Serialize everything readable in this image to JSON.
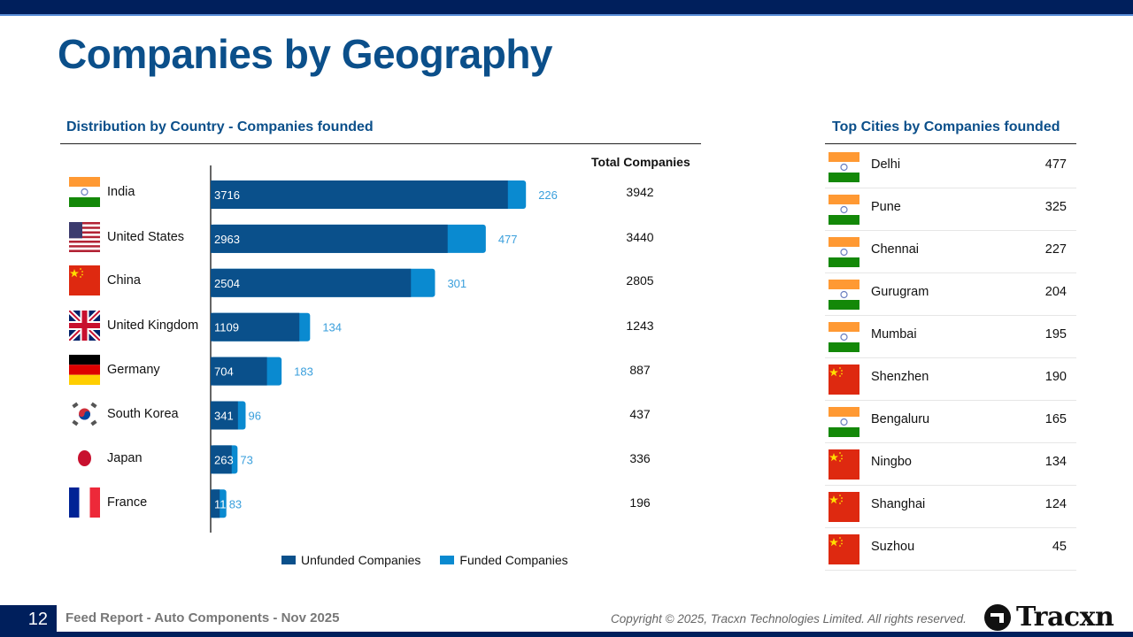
{
  "page": {
    "title": "Companies by Geography",
    "page_number": "12",
    "footer_title": "Feed Report - Auto Components - Nov 2025",
    "copyright": "Copyright © 2025, Tracxn Technologies Limited. All rights reserved.",
    "logo_text": "Tracxn"
  },
  "colors": {
    "title": "#0b4f8a",
    "unfunded": "#0a508b",
    "funded": "#0a8ad0",
    "funded_label": "#3a9fdc",
    "nav_dark": "#001f5c"
  },
  "country_section": {
    "title": "Distribution by Country - Companies founded",
    "total_header": "Total Companies",
    "countries": [
      {
        "name": "India",
        "flag": "india-flag",
        "total": "3942"
      },
      {
        "name": "United States",
        "flag": "usa-flag",
        "total": "3440"
      },
      {
        "name": "China",
        "flag": "china-flag",
        "total": "2805"
      },
      {
        "name": "United Kingdom",
        "flag": "uk-flag",
        "total": "1243"
      },
      {
        "name": "Germany",
        "flag": "germany-flag",
        "total": "887"
      },
      {
        "name": "South Korea",
        "flag": "south-korea-flag",
        "total": "437"
      },
      {
        "name": "Japan",
        "flag": "japan-flag",
        "total": "336"
      },
      {
        "name": "France",
        "flag": "france-flag",
        "total": "196"
      }
    ]
  },
  "chart_data": {
    "type": "bar",
    "orientation": "horizontal",
    "stacked": true,
    "title": "Distribution by Country - Companies founded",
    "categories": [
      "India",
      "United States",
      "China",
      "United Kingdom",
      "Germany",
      "South Korea",
      "Japan",
      "France"
    ],
    "series": [
      {
        "name": "Unfunded Companies",
        "values": [
          3716,
          2963,
          2504,
          1109,
          704,
          341,
          263,
          113
        ]
      },
      {
        "name": "Funded Companies",
        "values": [
          226,
          477,
          301,
          134,
          183,
          96,
          73,
          83
        ]
      }
    ],
    "totals": [
      3942,
      3440,
      2805,
      1243,
      887,
      437,
      336,
      196
    ],
    "xlim": [
      0,
      4100
    ],
    "grid": false,
    "legend": "bottom",
    "xlabel": "",
    "ylabel": ""
  },
  "cities_section": {
    "title": "Top Cities by Companies founded",
    "cities": [
      {
        "name": "Delhi",
        "flag": "india-flag",
        "value": "477"
      },
      {
        "name": "Pune",
        "flag": "india-flag",
        "value": "325"
      },
      {
        "name": "Chennai",
        "flag": "india-flag",
        "value": "227"
      },
      {
        "name": "Gurugram",
        "flag": "india-flag",
        "value": "204"
      },
      {
        "name": "Mumbai",
        "flag": "india-flag",
        "value": "195"
      },
      {
        "name": "Shenzhen",
        "flag": "china-flag",
        "value": "190"
      },
      {
        "name": "Bengaluru",
        "flag": "india-flag",
        "value": "165"
      },
      {
        "name": "Ningbo",
        "flag": "china-flag",
        "value": "134"
      },
      {
        "name": "Shanghai",
        "flag": "china-flag",
        "value": "124"
      },
      {
        "name": "Suzhou",
        "flag": "china-flag",
        "value": "45"
      }
    ]
  }
}
